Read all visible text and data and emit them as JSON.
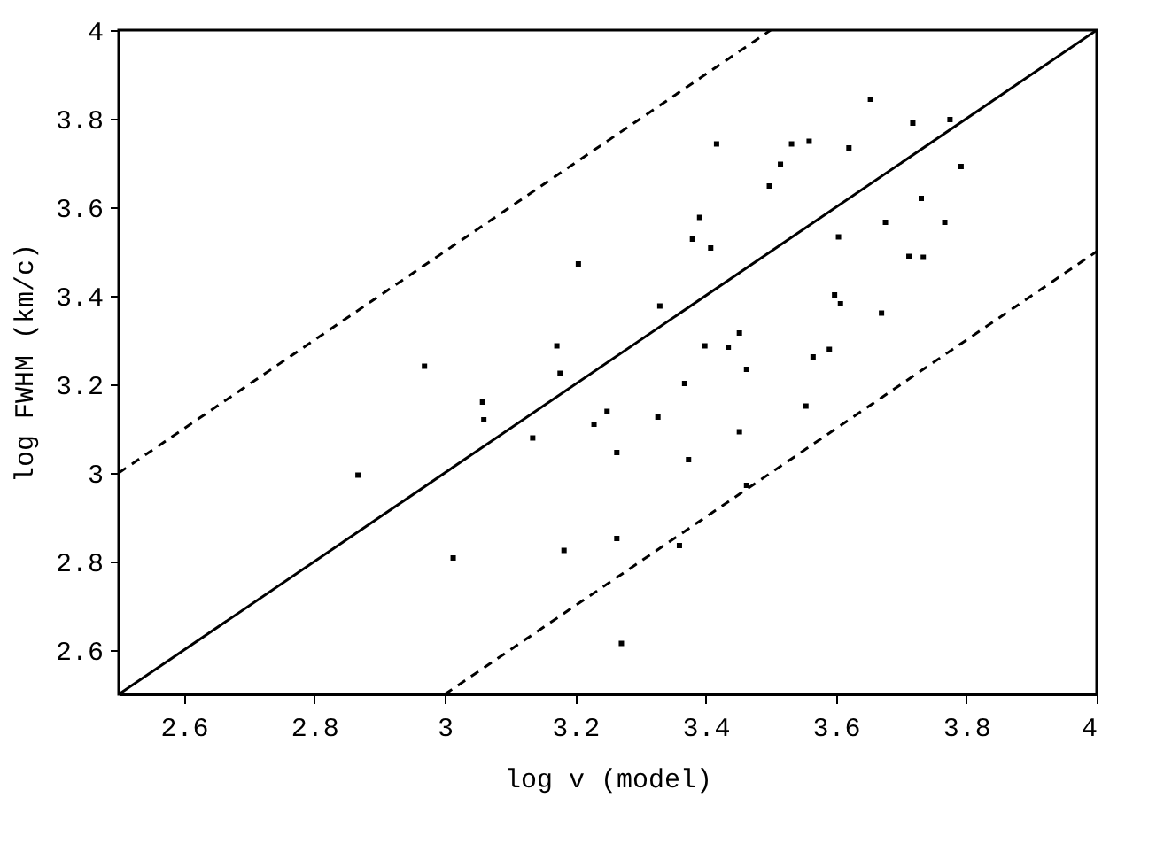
{
  "chart_data": {
    "type": "scatter",
    "xlabel": "log v (model)",
    "ylabel": "log FWHM (km/c)",
    "xlim": [
      2.5,
      4
    ],
    "ylim": [
      2.5,
      4
    ],
    "xticks": [
      2.6,
      2.8,
      3,
      3.2,
      3.4,
      3.6,
      3.8,
      4
    ],
    "yticks": [
      2.6,
      2.8,
      3,
      3.2,
      3.4,
      3.6,
      3.8,
      4
    ],
    "grid": false,
    "legend": false,
    "series": [
      {
        "color": "#000000",
        "marker": "square",
        "x": [
          2.867,
          2.969,
          3.013,
          3.058,
          3.06,
          3.135,
          3.172,
          3.177,
          3.183,
          3.205,
          3.229,
          3.249,
          3.264,
          3.264,
          3.271,
          3.327,
          3.33,
          3.36,
          3.368,
          3.374,
          3.38,
          3.391,
          3.399,
          3.408,
          3.417,
          3.435,
          3.452,
          3.452,
          3.463,
          3.463,
          3.498,
          3.515,
          3.532,
          3.559,
          3.554,
          3.565,
          3.59,
          3.598,
          3.607,
          3.604,
          3.62,
          3.653,
          3.67,
          3.676,
          3.712,
          3.718,
          3.731,
          3.734,
          3.767,
          3.775,
          3.792
        ],
        "values": [
          2.995,
          3.241,
          2.808,
          3.16,
          3.12,
          3.079,
          3.287,
          3.225,
          2.825,
          3.472,
          3.11,
          3.139,
          3.046,
          2.852,
          2.615,
          3.126,
          3.377,
          2.836,
          3.202,
          3.03,
          3.528,
          3.577,
          3.287,
          3.508,
          3.743,
          3.284,
          3.316,
          3.093,
          3.234,
          2.972,
          3.648,
          3.697,
          3.743,
          3.749,
          3.151,
          3.262,
          3.279,
          3.402,
          3.382,
          3.533,
          3.734,
          3.844,
          3.361,
          3.566,
          3.489,
          3.79,
          3.62,
          3.487,
          3.566,
          3.798,
          3.692
        ]
      },
      {
        "type": "line",
        "color": "#000000",
        "line_style": "solid",
        "x": [
          2.5,
          4
        ],
        "values": [
          2.5,
          4
        ]
      },
      {
        "type": "line",
        "color": "#000000",
        "line_style": "dashed",
        "x": [
          2.5,
          3.5
        ],
        "values": [
          3.0,
          4
        ]
      },
      {
        "type": "line",
        "color": "#000000",
        "line_style": "dashed",
        "x": [
          3,
          4
        ],
        "values": [
          2.5,
          3.5
        ]
      }
    ]
  }
}
